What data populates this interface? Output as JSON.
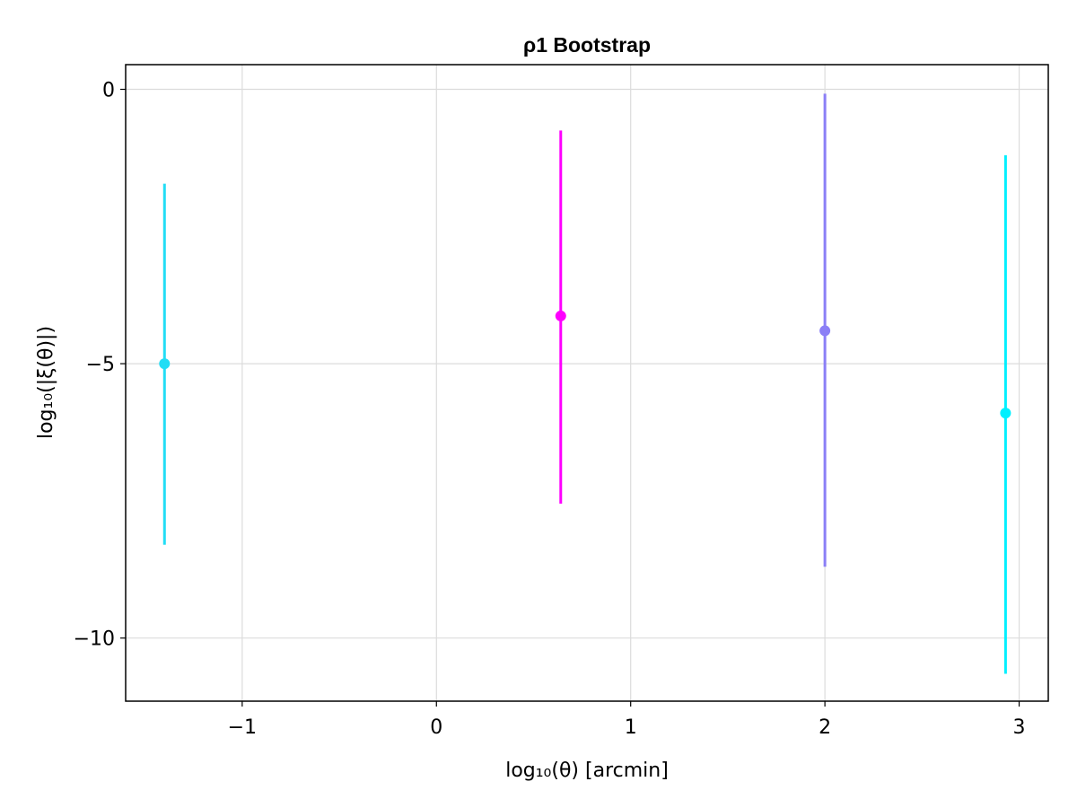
{
  "chart_data": {
    "type": "scatter",
    "title": "ρ1 Bootstrap",
    "xlabel": "log₁₀(θ) [arcmin]",
    "ylabel": "log₁₀(|ξ(θ)|)",
    "xlim": [
      -1.6,
      3.15
    ],
    "ylim": [
      -11.15,
      0.45
    ],
    "xticks": [
      -1,
      0,
      1,
      2,
      3
    ],
    "xtick_labels": [
      "−1",
      "0",
      "1",
      "2",
      "3"
    ],
    "yticks": [
      0,
      -5,
      -10
    ],
    "ytick_labels": [
      "0",
      "−5",
      "−10"
    ],
    "grid": true,
    "legend": "none",
    "points": [
      {
        "x": -1.4,
        "y": -5.0,
        "ylow": -8.3,
        "yhigh": -1.72,
        "color": "#22ddf5"
      },
      {
        "x": 0.64,
        "y": -4.13,
        "ylow": -7.55,
        "yhigh": -0.75,
        "color": "#ff00ff"
      },
      {
        "x": 2.0,
        "y": -4.4,
        "ylow": -8.7,
        "yhigh": -0.08,
        "color": "#8b7ff6"
      },
      {
        "x": 2.93,
        "y": -5.9,
        "ylow": -10.65,
        "yhigh": -1.2,
        "color": "#00f0ff"
      }
    ]
  }
}
